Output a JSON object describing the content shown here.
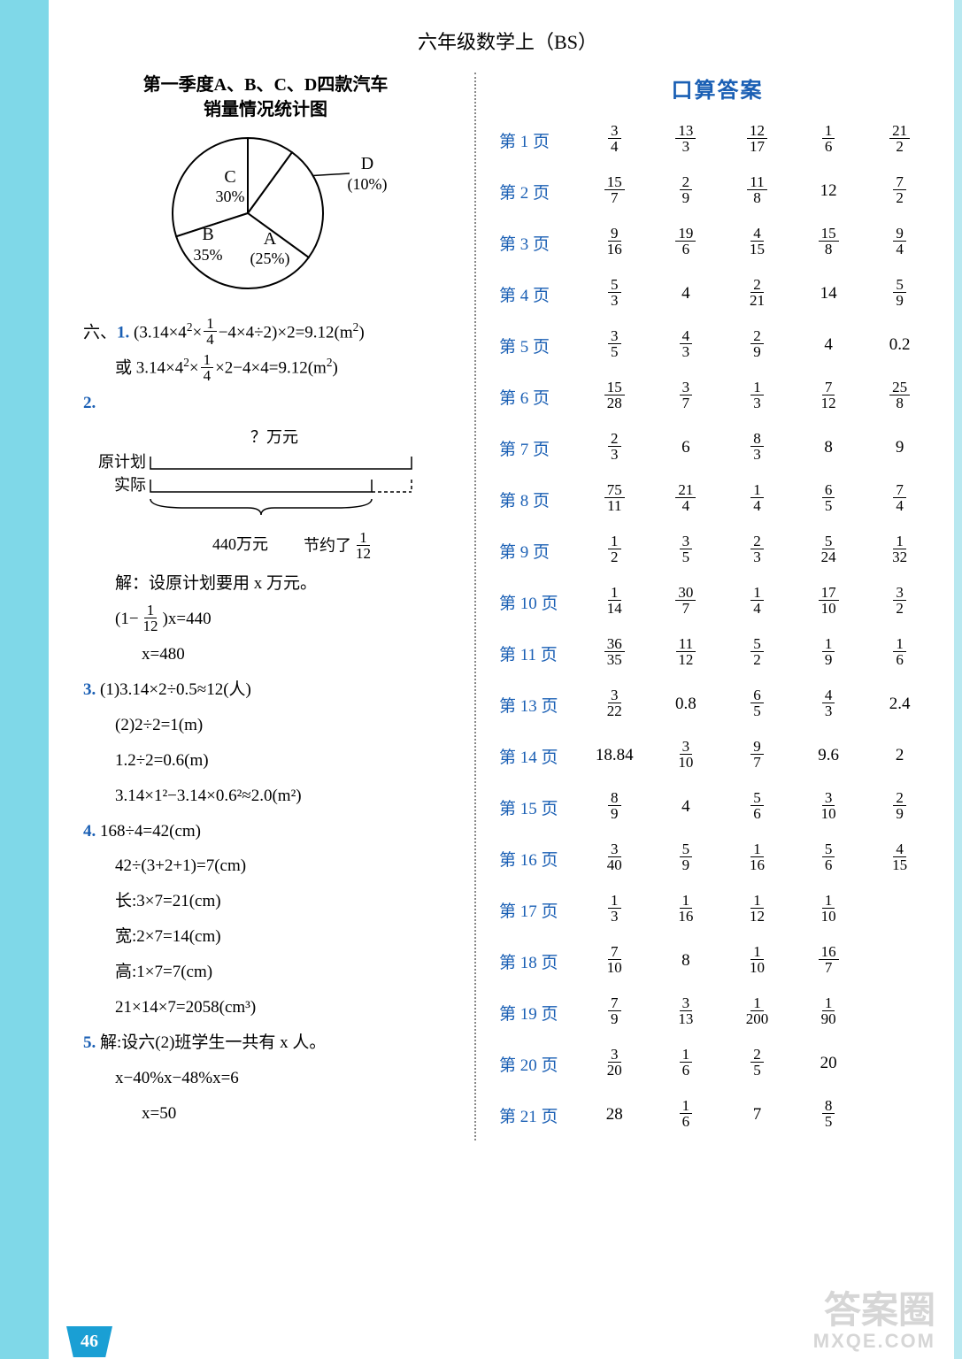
{
  "header": "六年级数学上（BS）",
  "chart": {
    "title_l1": "第一季度A、B、C、D四款汽车",
    "title_l2": "销量情况统计图",
    "slices": [
      {
        "label": "C",
        "pct": "30%",
        "value": 30,
        "color": "#ffffff"
      },
      {
        "label": "D",
        "pct": "(10%)",
        "value": 10,
        "color": "#ffffff"
      },
      {
        "label": "A",
        "pct": "(25%)",
        "value": 25,
        "color": "#ffffff"
      },
      {
        "label": "B",
        "pct": "35%",
        "value": 35,
        "color": "#ffffff"
      }
    ],
    "stroke": "#000000",
    "radius": 85
  },
  "left": {
    "six_label": "六、",
    "q1_label": "1.",
    "q1_line1_a": "(3.14×4",
    "q1_line1_b": "×",
    "q1_line1_c": "−4×4÷2)×2=9.12(m",
    "q1_line1_d": ")",
    "q1_or": "或 3.14×4",
    "q1_or_b": "×",
    "q1_or_c": "×2−4×4=9.12(m",
    "q1_or_d": ")",
    "q2_label": "2.",
    "diag2": {
      "top": "？万元",
      "row1": "原计划",
      "row2": "实际",
      "val": "440万元",
      "save": "节约了",
      "save_frac_n": "1",
      "save_frac_d": "12"
    },
    "q2_sol1": "解：设原计划要用 x 万元。",
    "q2_eq1_a": "(1−",
    "q2_eq1_b": ")x=440",
    "q2_eq2": "x=480",
    "q3_label": "3.",
    "q3_1": "(1)3.14×2÷0.5≈12(人)",
    "q3_2": "(2)2÷2=1(m)",
    "q3_3": "1.2÷2=0.6(m)",
    "q3_4": "3.14×1²−3.14×0.6²≈2.0(m²)",
    "q4_label": "4.",
    "q4_1": "168÷4=42(cm)",
    "q4_2": "42÷(3+2+1)=7(cm)",
    "q4_3": "长:3×7=21(cm)",
    "q4_4": "宽:2×7=14(cm)",
    "q4_5": "高:1×7=7(cm)",
    "q4_6": "21×14×7=2058(cm³)",
    "q5_label": "5.",
    "q5_1": "解:设六(2)班学生一共有 x 人。",
    "q5_2": "x−40%x−48%x=6",
    "q5_3": "x=50"
  },
  "answers": {
    "title": "口算答案",
    "rows": [
      {
        "page": "第 1 页",
        "cells": [
          [
            "3",
            "4"
          ],
          [
            "13",
            "3"
          ],
          [
            "12",
            "17"
          ],
          [
            "1",
            "6"
          ],
          [
            "21",
            "2"
          ]
        ]
      },
      {
        "page": "第 2 页",
        "cells": [
          [
            "15",
            "7"
          ],
          [
            "2",
            "9"
          ],
          [
            "11",
            "8"
          ],
          "12",
          [
            "7",
            "2"
          ]
        ]
      },
      {
        "page": "第 3 页",
        "cells": [
          [
            "9",
            "16"
          ],
          [
            "19",
            "6"
          ],
          [
            "4",
            "15"
          ],
          [
            "15",
            "8"
          ],
          [
            "9",
            "4"
          ]
        ]
      },
      {
        "page": "第 4 页",
        "cells": [
          [
            "5",
            "3"
          ],
          "4",
          [
            "2",
            "21"
          ],
          "14",
          [
            "5",
            "9"
          ]
        ]
      },
      {
        "page": "第 5 页",
        "cells": [
          [
            "3",
            "5"
          ],
          [
            "4",
            "3"
          ],
          [
            "2",
            "9"
          ],
          "4",
          "0.2"
        ]
      },
      {
        "page": "第 6 页",
        "cells": [
          [
            "15",
            "28"
          ],
          [
            "3",
            "7"
          ],
          [
            "1",
            "3"
          ],
          [
            "7",
            "12"
          ],
          [
            "25",
            "8"
          ]
        ]
      },
      {
        "page": "第 7 页",
        "cells": [
          [
            "2",
            "3"
          ],
          "6",
          [
            "8",
            "3"
          ],
          "8",
          "9"
        ]
      },
      {
        "page": "第 8 页",
        "cells": [
          [
            "75",
            "11"
          ],
          [
            "21",
            "4"
          ],
          [
            "1",
            "4"
          ],
          [
            "6",
            "5"
          ],
          [
            "7",
            "4"
          ]
        ]
      },
      {
        "page": "第 9 页",
        "cells": [
          [
            "1",
            "2"
          ],
          [
            "3",
            "5"
          ],
          [
            "2",
            "3"
          ],
          [
            "5",
            "24"
          ],
          [
            "1",
            "32"
          ]
        ]
      },
      {
        "page": "第 10 页",
        "cells": [
          [
            "1",
            "14"
          ],
          [
            "30",
            "7"
          ],
          [
            "1",
            "4"
          ],
          [
            "17",
            "10"
          ],
          [
            "3",
            "2"
          ]
        ]
      },
      {
        "page": "第 11 页",
        "cells": [
          [
            "36",
            "35"
          ],
          [
            "11",
            "12"
          ],
          [
            "5",
            "2"
          ],
          [
            "1",
            "9"
          ],
          [
            "1",
            "6"
          ]
        ]
      },
      {
        "page": "第 13 页",
        "cells": [
          [
            "3",
            "22"
          ],
          "0.8",
          [
            "6",
            "5"
          ],
          [
            "4",
            "3"
          ],
          "2.4"
        ]
      },
      {
        "page": "第 14 页",
        "cells": [
          "18.84",
          [
            "3",
            "10"
          ],
          [
            "9",
            "7"
          ],
          "9.6",
          "2"
        ]
      },
      {
        "page": "第 15 页",
        "cells": [
          [
            "8",
            "9"
          ],
          "4",
          [
            "5",
            "6"
          ],
          [
            "3",
            "10"
          ],
          [
            "2",
            "9"
          ]
        ]
      },
      {
        "page": "第 16 页",
        "cells": [
          [
            "3",
            "40"
          ],
          [
            "5",
            "9"
          ],
          [
            "1",
            "16"
          ],
          [
            "5",
            "6"
          ],
          [
            "4",
            "15"
          ]
        ]
      },
      {
        "page": "第 17 页",
        "cells": [
          [
            "1",
            "3"
          ],
          [
            "1",
            "16"
          ],
          [
            "1",
            "12"
          ],
          [
            "1",
            "10"
          ],
          ""
        ]
      },
      {
        "page": "第 18 页",
        "cells": [
          [
            "7",
            "10"
          ],
          "8",
          [
            "1",
            "10"
          ],
          [
            "16",
            "7"
          ],
          ""
        ]
      },
      {
        "page": "第 19 页",
        "cells": [
          [
            "7",
            "9"
          ],
          [
            "3",
            "13"
          ],
          [
            "1",
            "200"
          ],
          [
            "1",
            "90"
          ],
          ""
        ]
      },
      {
        "page": "第 20 页",
        "cells": [
          [
            "3",
            "20"
          ],
          [
            "1",
            "6"
          ],
          [
            "2",
            "5"
          ],
          "20",
          ""
        ]
      },
      {
        "page": "第 21 页",
        "cells": [
          "28",
          [
            "1",
            "6"
          ],
          "7",
          [
            "8",
            "5"
          ],
          ""
        ]
      }
    ]
  },
  "pagenum": "46",
  "watermark": {
    "l1": "答案圈",
    "l2": "MXQE.COM"
  }
}
